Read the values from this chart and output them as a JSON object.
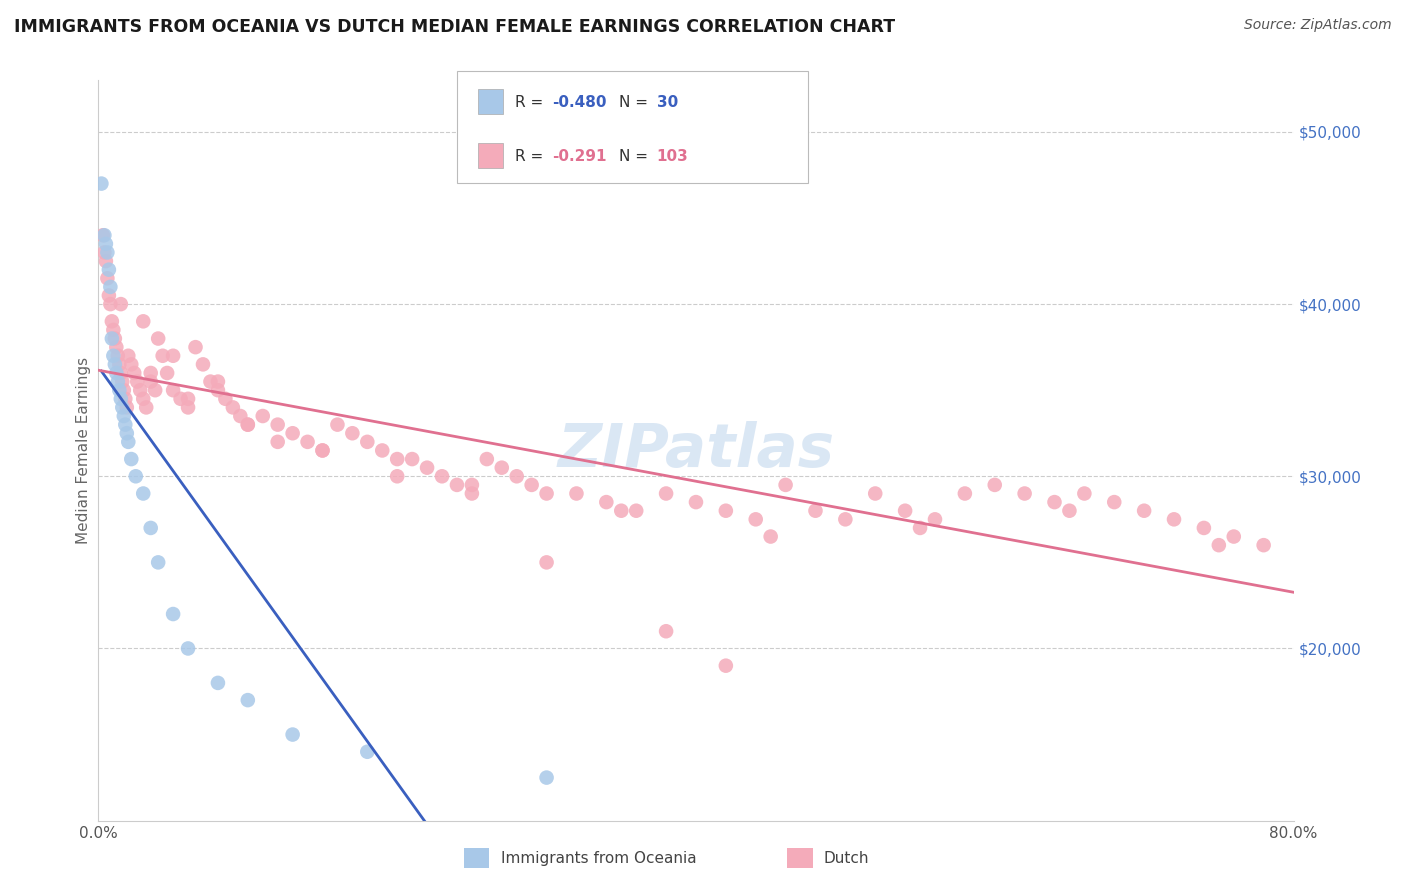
{
  "title": "IMMIGRANTS FROM OCEANIA VS DUTCH MEDIAN FEMALE EARNINGS CORRELATION CHART",
  "source": "Source: ZipAtlas.com",
  "ylabel": "Median Female Earnings",
  "xlim": [
    0.0,
    0.8
  ],
  "ylim": [
    10000,
    53000
  ],
  "yticks": [
    20000,
    30000,
    40000,
    50000
  ],
  "ytick_labels": [
    "$20,000",
    "$30,000",
    "$40,000",
    "$50,000"
  ],
  "blue_color": "#A8C8E8",
  "pink_color": "#F4ABBA",
  "blue_line_color": "#3A5FBF",
  "pink_line_color": "#E07090",
  "watermark": "ZIPatlas",
  "blue_r": "-0.480",
  "blue_n": "30",
  "pink_r": "-0.291",
  "pink_n": "103",
  "blue_scatter_x": [
    0.002,
    0.004,
    0.005,
    0.006,
    0.007,
    0.008,
    0.009,
    0.01,
    0.011,
    0.012,
    0.013,
    0.014,
    0.015,
    0.016,
    0.017,
    0.018,
    0.019,
    0.02,
    0.022,
    0.025,
    0.03,
    0.035,
    0.04,
    0.05,
    0.06,
    0.08,
    0.1,
    0.13,
    0.18,
    0.3
  ],
  "blue_scatter_y": [
    47000,
    44000,
    43500,
    43000,
    42000,
    41000,
    38000,
    37000,
    36500,
    36000,
    35500,
    35000,
    34500,
    34000,
    33500,
    33000,
    32500,
    32000,
    31000,
    30000,
    29000,
    27000,
    25000,
    22000,
    20000,
    18000,
    17000,
    15000,
    14000,
    12500
  ],
  "pink_scatter_x": [
    0.003,
    0.004,
    0.005,
    0.006,
    0.007,
    0.008,
    0.009,
    0.01,
    0.011,
    0.012,
    0.013,
    0.014,
    0.015,
    0.016,
    0.017,
    0.018,
    0.019,
    0.02,
    0.022,
    0.024,
    0.026,
    0.028,
    0.03,
    0.032,
    0.035,
    0.038,
    0.04,
    0.043,
    0.046,
    0.05,
    0.055,
    0.06,
    0.065,
    0.07,
    0.075,
    0.08,
    0.085,
    0.09,
    0.095,
    0.1,
    0.11,
    0.12,
    0.13,
    0.14,
    0.15,
    0.16,
    0.17,
    0.18,
    0.19,
    0.2,
    0.21,
    0.22,
    0.23,
    0.24,
    0.25,
    0.26,
    0.27,
    0.28,
    0.29,
    0.3,
    0.32,
    0.34,
    0.36,
    0.38,
    0.4,
    0.42,
    0.44,
    0.46,
    0.48,
    0.5,
    0.52,
    0.54,
    0.56,
    0.58,
    0.6,
    0.62,
    0.64,
    0.66,
    0.68,
    0.7,
    0.72,
    0.74,
    0.76,
    0.78,
    0.015,
    0.03,
    0.05,
    0.08,
    0.12,
    0.2,
    0.035,
    0.06,
    0.1,
    0.15,
    0.25,
    0.35,
    0.45,
    0.55,
    0.65,
    0.75,
    0.38,
    0.42,
    0.3
  ],
  "pink_scatter_y": [
    44000,
    43000,
    42500,
    41500,
    40500,
    40000,
    39000,
    38500,
    38000,
    37500,
    37000,
    36500,
    36000,
    35500,
    35000,
    34500,
    34000,
    37000,
    36500,
    36000,
    35500,
    35000,
    34500,
    34000,
    35500,
    35000,
    38000,
    37000,
    36000,
    35000,
    34500,
    34000,
    37500,
    36500,
    35500,
    35000,
    34500,
    34000,
    33500,
    33000,
    33500,
    33000,
    32500,
    32000,
    31500,
    33000,
    32500,
    32000,
    31500,
    31000,
    31000,
    30500,
    30000,
    29500,
    29000,
    31000,
    30500,
    30000,
    29500,
    29000,
    29000,
    28500,
    28000,
    29000,
    28500,
    28000,
    27500,
    29500,
    28000,
    27500,
    29000,
    28000,
    27500,
    29000,
    29500,
    29000,
    28500,
    29000,
    28500,
    28000,
    27500,
    27000,
    26500,
    26000,
    40000,
    39000,
    37000,
    35500,
    32000,
    30000,
    36000,
    34500,
    33000,
    31500,
    29500,
    28000,
    26500,
    27000,
    28000,
    26000,
    21000,
    19000,
    25000
  ]
}
